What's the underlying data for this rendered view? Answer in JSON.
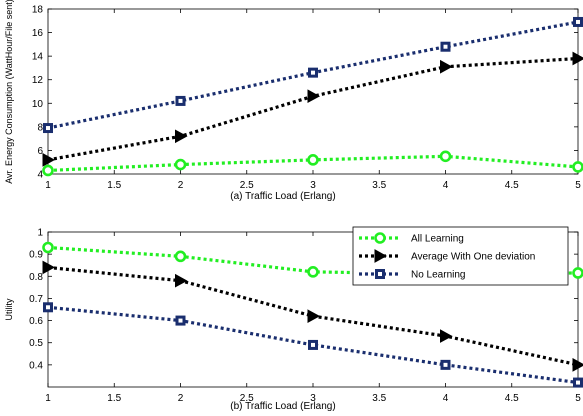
{
  "chart_data": [
    {
      "type": "line",
      "title": "",
      "xlabel": "(a) Traffic Load (Erlang)",
      "ylabel": "Avr. Energy Consumption (WattHour/File sent)",
      "xlim": [
        1,
        5
      ],
      "ylim": [
        4,
        18
      ],
      "xticks": [
        "1",
        "1.5",
        "2",
        "2.5",
        "3",
        "3.5",
        "4",
        "4.5",
        "5"
      ],
      "yticks": [
        "4",
        "6",
        "8",
        "10",
        "12",
        "14",
        "16",
        "18"
      ],
      "grid": false,
      "x": [
        1,
        2,
        3,
        4,
        5
      ],
      "series": [
        {
          "key": "all",
          "color": "#22ee22",
          "marker": "circle",
          "values": [
            4.3,
            4.8,
            5.2,
            5.5,
            4.6
          ]
        },
        {
          "key": "avg",
          "color": "#000000",
          "marker": "triangle-right",
          "values": [
            5.2,
            7.2,
            10.6,
            13.1,
            13.8
          ]
        },
        {
          "key": "none",
          "color": "#1a2e6e",
          "marker": "square",
          "values": [
            7.9,
            10.2,
            12.6,
            14.8,
            16.9
          ]
        }
      ]
    },
    {
      "type": "line",
      "title": "",
      "xlabel": "(b) Traffic Load (Erlang)",
      "ylabel": "Utility",
      "xlim": [
        1,
        5
      ],
      "ylim": [
        0.3,
        1.0
      ],
      "xticks": [
        "1",
        "1.5",
        "2",
        "2.5",
        "3",
        "3.5",
        "4",
        "4.5",
        "5"
      ],
      "yticks": [
        "0.4",
        "0.5",
        "0.6",
        "0.7",
        "0.8",
        "0.9",
        "1"
      ],
      "grid": false,
      "legend_position": "top-right",
      "legend": [
        "All Learning",
        "Average With One deviation",
        "No Learning"
      ],
      "x": [
        1,
        2,
        3,
        4,
        5
      ],
      "series": [
        {
          "key": "all",
          "name": "All Learning",
          "color": "#22ee22",
          "marker": "circle",
          "values": [
            0.93,
            0.89,
            0.82,
            0.81,
            0.815
          ]
        },
        {
          "key": "avg",
          "name": "Average With One deviation",
          "color": "#000000",
          "marker": "triangle-right",
          "values": [
            0.84,
            0.78,
            0.62,
            0.53,
            0.4
          ]
        },
        {
          "key": "none",
          "name": "No Learning",
          "color": "#1a2e6e",
          "marker": "square",
          "values": [
            0.66,
            0.6,
            0.49,
            0.4,
            0.32
          ]
        }
      ]
    }
  ]
}
